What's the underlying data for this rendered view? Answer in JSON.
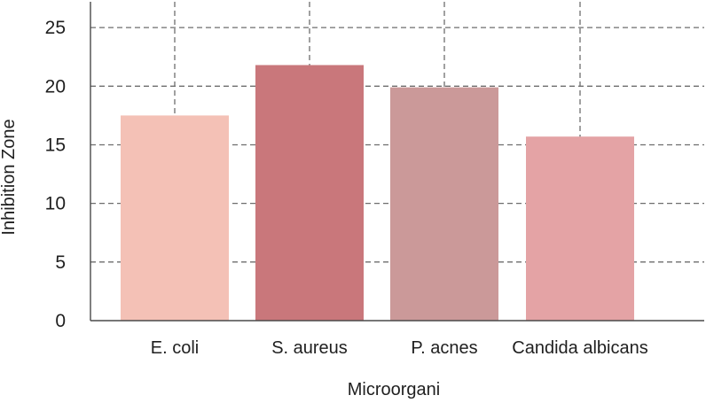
{
  "chart_data": {
    "type": "bar",
    "title": "",
    "xlabel": "Microorgani",
    "ylabel": "Inhibition Zone",
    "categories": [
      "E. coli",
      "S. aureus",
      "P. acnes",
      "Candida albicans"
    ],
    "values": [
      17.5,
      21.8,
      19.9,
      15.7
    ],
    "colors": [
      "#f4c1b6",
      "#c9777b",
      "#cb9999",
      "#e4a3a5"
    ],
    "ylim": [
      0,
      27.2
    ],
    "yticks": [
      0,
      5,
      10,
      15,
      20,
      25
    ],
    "grid": true,
    "grid_color": "#6e6e6e",
    "axis_color": "#4a4a4a",
    "legend": "none"
  }
}
